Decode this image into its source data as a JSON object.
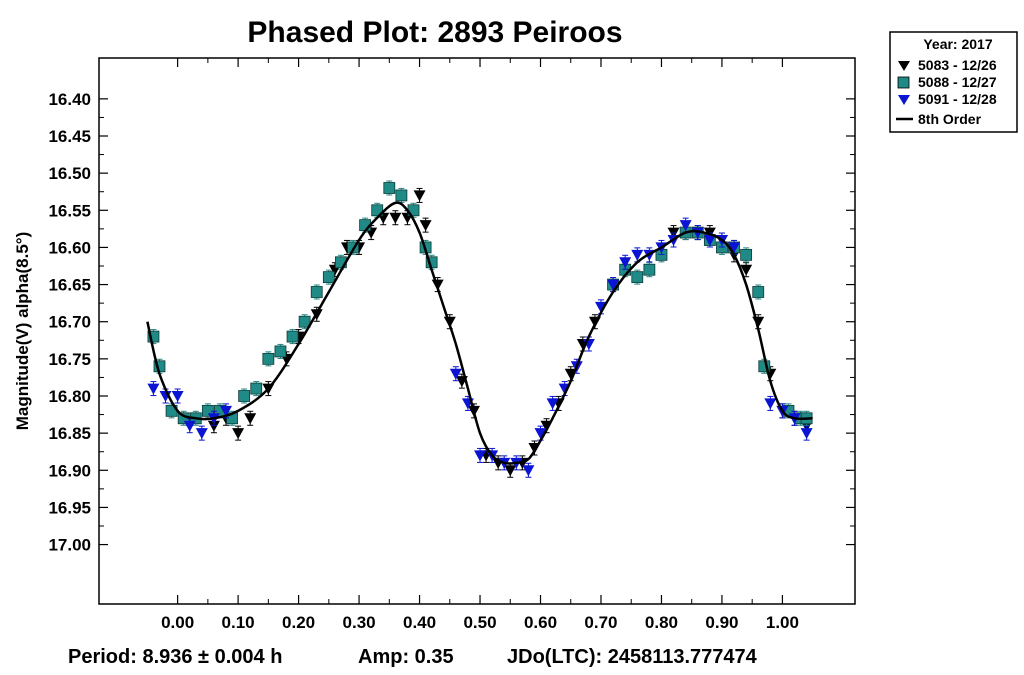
{
  "chart_data": {
    "type": "scatter",
    "title": "Phased Plot: 2893 Peiroos",
    "ylabel": "Magnitude(V) alpha(8.5°)",
    "xlabel": "",
    "xlim": [
      -0.13,
      1.12
    ],
    "ylim": [
      17.08,
      16.345
    ],
    "y_inverted": true,
    "x_ticks": [
      "0.00",
      "0.10",
      "0.20",
      "0.30",
      "0.40",
      "0.50",
      "0.60",
      "0.70",
      "0.80",
      "0.90",
      "1.00"
    ],
    "x_tick_values": [
      0,
      0.1,
      0.2,
      0.3,
      0.4,
      0.5,
      0.6,
      0.7,
      0.8,
      0.9,
      1.0
    ],
    "y_ticks": [
      "16.40",
      "16.45",
      "16.50",
      "16.55",
      "16.60",
      "16.65",
      "16.70",
      "16.75",
      "16.80",
      "16.85",
      "16.90",
      "16.95",
      "17.00"
    ],
    "y_tick_values": [
      16.4,
      16.45,
      16.5,
      16.55,
      16.6,
      16.65,
      16.7,
      16.75,
      16.8,
      16.85,
      16.9,
      16.95,
      17.0
    ],
    "grid": false,
    "legend_position": "outside-top-right",
    "legend_title": "Year: 2017",
    "series": [
      {
        "name": "5083 - 12/26",
        "marker": "triangle-down",
        "color": "#000000",
        "x": [
          0.06,
          0.08,
          0.1,
          0.12,
          0.15,
          0.18,
          0.2,
          0.23,
          0.26,
          0.28,
          0.3,
          0.32,
          0.34,
          0.36,
          0.38,
          0.4,
          0.41,
          0.43,
          0.45,
          0.47,
          0.49,
          0.51,
          0.53,
          0.55,
          0.57,
          0.59,
          0.61,
          0.63,
          0.65,
          0.67,
          0.69,
          0.82,
          0.84,
          0.86,
          0.88,
          0.9,
          0.92,
          0.94,
          0.96,
          0.98,
          1.0,
          1.02,
          1.04
        ],
        "y": [
          16.84,
          16.83,
          16.85,
          16.83,
          16.79,
          16.75,
          16.72,
          16.69,
          16.63,
          16.6,
          16.6,
          16.58,
          16.56,
          16.56,
          16.56,
          16.53,
          16.57,
          16.65,
          16.7,
          16.78,
          16.82,
          16.88,
          16.89,
          16.9,
          16.89,
          16.87,
          16.84,
          16.81,
          16.77,
          16.73,
          16.7,
          16.58,
          16.58,
          16.58,
          16.58,
          16.59,
          16.61,
          16.63,
          16.7,
          16.77,
          16.82,
          16.83,
          16.84
        ]
      },
      {
        "name": "5088 - 12/27",
        "marker": "square",
        "color": "#1f8a86",
        "x": [
          -0.04,
          -0.03,
          -0.01,
          0.01,
          0.03,
          0.05,
          0.07,
          0.09,
          0.11,
          0.13,
          0.15,
          0.17,
          0.19,
          0.21,
          0.23,
          0.25,
          0.27,
          0.29,
          0.31,
          0.33,
          0.35,
          0.37,
          0.39,
          0.41,
          0.42,
          0.72,
          0.74,
          0.76,
          0.78,
          0.8,
          0.84,
          0.86,
          0.88,
          0.9,
          0.92,
          0.94,
          0.96,
          0.97,
          1.01,
          1.03,
          1.04
        ],
        "y": [
          16.72,
          16.76,
          16.82,
          16.83,
          16.83,
          16.82,
          16.82,
          16.83,
          16.8,
          16.79,
          16.75,
          16.74,
          16.72,
          16.7,
          16.66,
          16.64,
          16.62,
          16.6,
          16.57,
          16.55,
          16.52,
          16.53,
          16.55,
          16.6,
          16.62,
          16.65,
          16.63,
          16.64,
          16.63,
          16.61,
          16.58,
          16.58,
          16.59,
          16.6,
          16.6,
          16.61,
          16.66,
          16.76,
          16.82,
          16.83,
          16.83
        ]
      },
      {
        "name": "5091 - 12/28",
        "marker": "triangle-down",
        "color": "#0a14d2",
        "x": [
          -0.04,
          -0.02,
          0.0,
          0.02,
          0.04,
          0.06,
          0.08,
          0.46,
          0.48,
          0.5,
          0.52,
          0.54,
          0.56,
          0.58,
          0.6,
          0.62,
          0.64,
          0.66,
          0.68,
          0.7,
          0.72,
          0.74,
          0.76,
          0.78,
          0.8,
          0.82,
          0.84,
          0.86,
          0.88,
          0.9,
          0.92,
          0.98,
          1.0,
          1.02,
          1.04
        ],
        "y": [
          16.79,
          16.8,
          16.8,
          16.84,
          16.85,
          16.83,
          16.82,
          16.77,
          16.81,
          16.88,
          16.88,
          16.89,
          16.89,
          16.9,
          16.85,
          16.81,
          16.79,
          16.76,
          16.73,
          16.68,
          16.65,
          16.62,
          16.61,
          16.61,
          16.6,
          16.59,
          16.57,
          16.58,
          16.59,
          16.59,
          16.6,
          16.81,
          16.82,
          16.83,
          16.85
        ]
      }
    ],
    "fit": {
      "name": "8th Order",
      "color": "#000000",
      "x": [
        -0.05,
        -0.03,
        0.0,
        0.03,
        0.06,
        0.1,
        0.15,
        0.2,
        0.25,
        0.3,
        0.33,
        0.36,
        0.38,
        0.4,
        0.42,
        0.44,
        0.46,
        0.48,
        0.5,
        0.52,
        0.54,
        0.56,
        0.58,
        0.6,
        0.62,
        0.65,
        0.68,
        0.72,
        0.76,
        0.8,
        0.84,
        0.87,
        0.9,
        0.92,
        0.94,
        0.96,
        0.98,
        1.0,
        1.02,
        1.05
      ],
      "y": [
        16.7,
        16.77,
        16.82,
        16.83,
        16.83,
        16.82,
        16.79,
        16.73,
        16.66,
        16.59,
        16.56,
        16.54,
        16.55,
        16.58,
        16.63,
        16.68,
        16.73,
        16.79,
        16.85,
        16.88,
        16.89,
        16.89,
        16.885,
        16.86,
        16.83,
        16.78,
        16.72,
        16.66,
        16.62,
        16.6,
        16.58,
        16.58,
        16.59,
        16.61,
        16.65,
        16.71,
        16.78,
        16.82,
        16.83,
        16.83
      ]
    }
  },
  "legend": {
    "title": "Year: 2017",
    "entries": [
      "5083 - 12/26",
      "5088 - 12/27",
      "5091 - 12/28",
      "8th Order"
    ]
  },
  "footer": {
    "period": "Period: 8.936 ± 0.004 h",
    "amp": "Amp: 0.35",
    "jdo": "JDo(LTC): 2458113.777474"
  }
}
